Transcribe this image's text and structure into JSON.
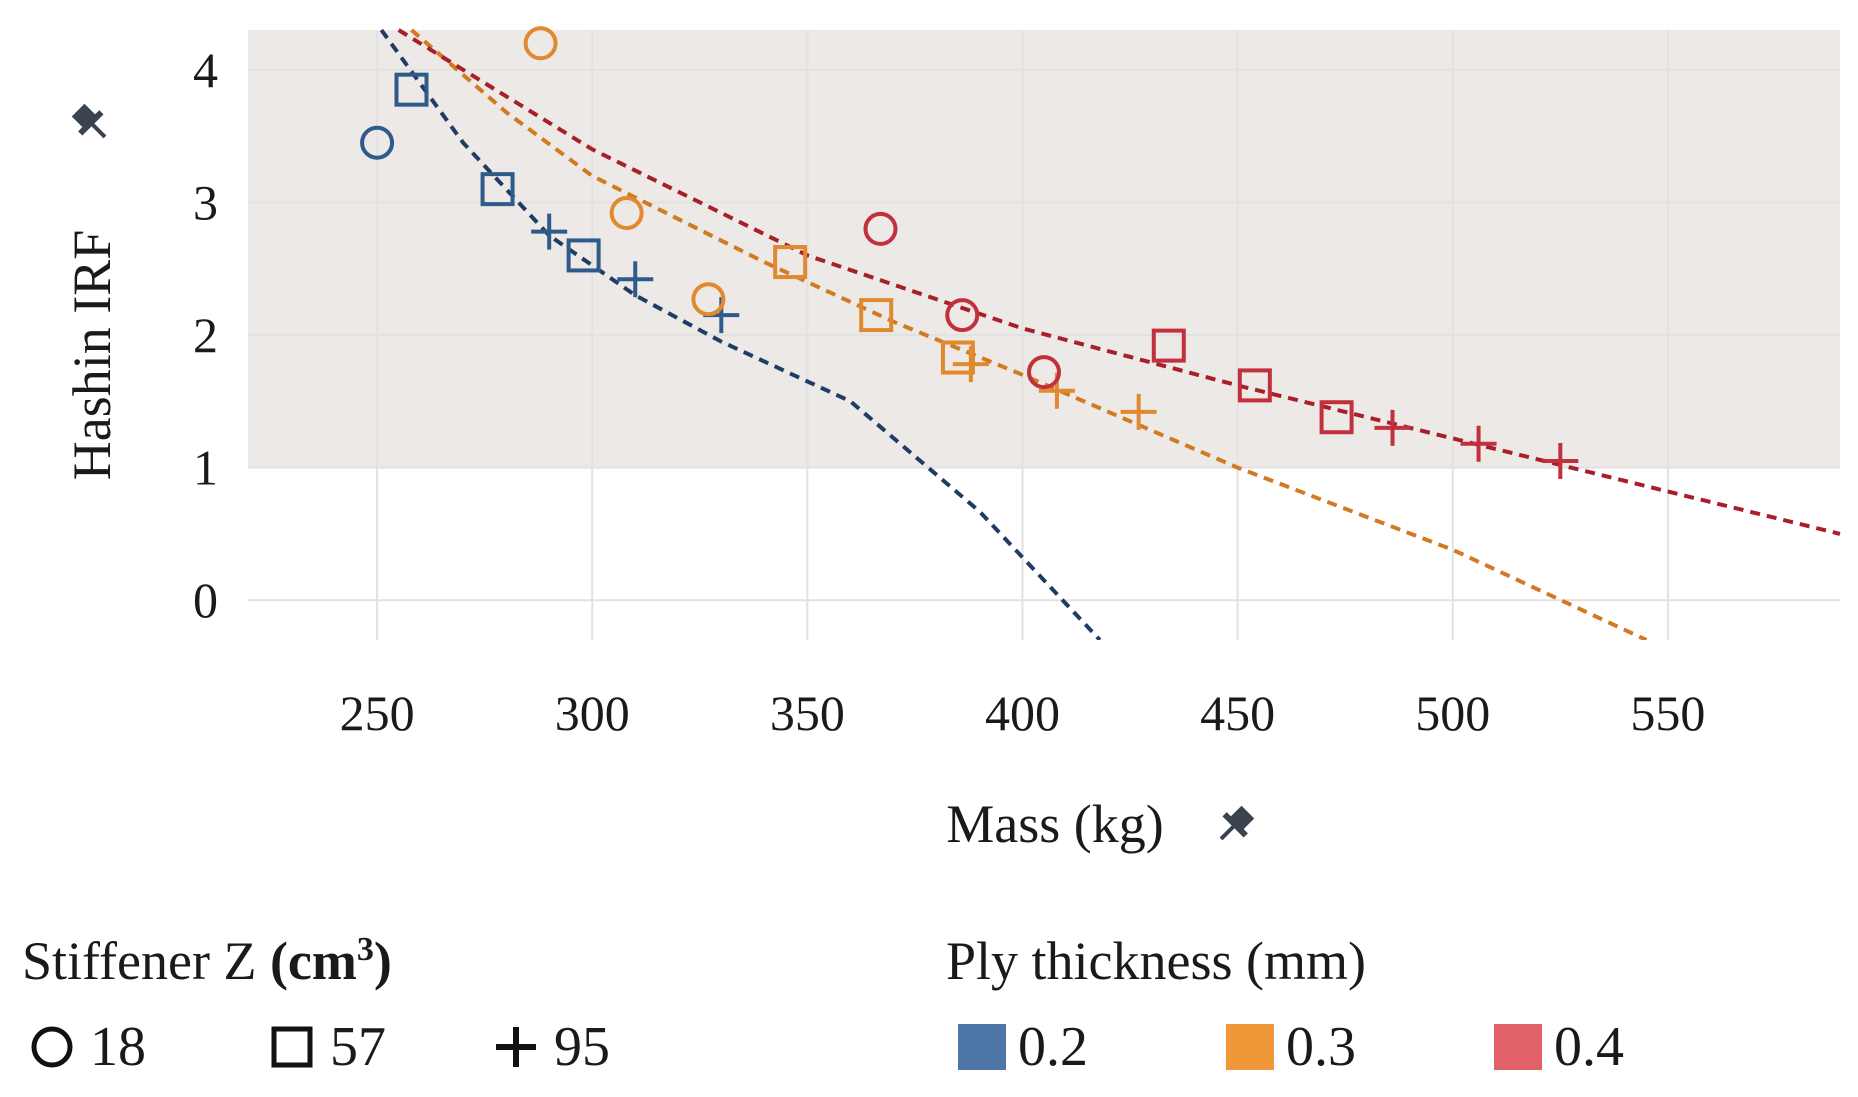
{
  "chart_data": {
    "type": "scatter",
    "xlabel": "Mass (kg)",
    "ylabel": "Hashin IRF",
    "xlim": [
      220,
      590
    ],
    "ylim": [
      -0.3,
      4.3
    ],
    "x_ticks": [
      250,
      300,
      350,
      400,
      450,
      500,
      550
    ],
    "y_ticks": [
      0,
      1,
      2,
      3,
      4
    ],
    "shaded_region": {
      "y_from": 1,
      "y_to": 4.3,
      "color": "#ece9e6"
    },
    "series": [
      {
        "name": "0.2",
        "color": "#2f5b8a",
        "points": [
          {
            "x": 250,
            "y": 3.45,
            "z": "18"
          },
          {
            "x": 258,
            "y": 3.85,
            "z": "57"
          },
          {
            "x": 278,
            "y": 3.1,
            "z": "57"
          },
          {
            "x": 298,
            "y": 2.6,
            "z": "57"
          },
          {
            "x": 290,
            "y": 2.78,
            "z": "95"
          },
          {
            "x": 310,
            "y": 2.42,
            "z": "95"
          },
          {
            "x": 330,
            "y": 2.15,
            "z": "95"
          }
        ],
        "trend": {
          "color": "#1f3c66",
          "points": [
            [
              251,
              4.3
            ],
            [
              270,
              3.45
            ],
            [
              290,
              2.75
            ],
            [
              310,
              2.3
            ],
            [
              330,
              1.95
            ],
            [
              360,
              1.5
            ],
            [
              390,
              0.67
            ],
            [
              418,
              -0.3
            ]
          ]
        }
      },
      {
        "name": "0.3",
        "color": "#e0892f",
        "points": [
          {
            "x": 288,
            "y": 4.2,
            "z": "18"
          },
          {
            "x": 308,
            "y": 2.92,
            "z": "18"
          },
          {
            "x": 327,
            "y": 2.27,
            "z": "18"
          },
          {
            "x": 346,
            "y": 2.55,
            "z": "57"
          },
          {
            "x": 366,
            "y": 2.15,
            "z": "57"
          },
          {
            "x": 385,
            "y": 1.83,
            "z": "57"
          },
          {
            "x": 388,
            "y": 1.78,
            "z": "95"
          },
          {
            "x": 408,
            "y": 1.58,
            "z": "95"
          },
          {
            "x": 427,
            "y": 1.42,
            "z": "95"
          }
        ],
        "trend": {
          "color": "#d27a22",
          "points": [
            [
              258,
              4.3
            ],
            [
              280,
              3.68
            ],
            [
              300,
              3.2
            ],
            [
              340,
              2.55
            ],
            [
              370,
              2.1
            ],
            [
              400,
              1.7
            ],
            [
              450,
              1.0
            ],
            [
              500,
              0.38
            ],
            [
              545,
              -0.3
            ]
          ]
        }
      },
      {
        "name": "0.4",
        "color": "#c2303d",
        "points": [
          {
            "x": 367,
            "y": 2.8,
            "z": "18"
          },
          {
            "x": 386,
            "y": 2.15,
            "z": "18"
          },
          {
            "x": 405,
            "y": 1.72,
            "z": "18"
          },
          {
            "x": 434,
            "y": 1.92,
            "z": "57"
          },
          {
            "x": 454,
            "y": 1.62,
            "z": "57"
          },
          {
            "x": 473,
            "y": 1.38,
            "z": "57"
          },
          {
            "x": 486,
            "y": 1.3,
            "z": "95"
          },
          {
            "x": 506,
            "y": 1.18,
            "z": "95"
          },
          {
            "x": 525,
            "y": 1.05,
            "z": "95"
          }
        ],
        "trend": {
          "color": "#a81f2a",
          "points": [
            [
              255,
              4.3
            ],
            [
              300,
              3.4
            ],
            [
              350,
              2.6
            ],
            [
              400,
              2.05
            ],
            [
              450,
              1.62
            ],
            [
              500,
              1.22
            ],
            [
              550,
              0.82
            ],
            [
              590,
              0.5
            ]
          ]
        }
      }
    ],
    "legend_shape": {
      "title_prefix": "Stiffener Z",
      "title_unit": "(cm",
      "title_exp": "3",
      "title_close": ")",
      "items": [
        {
          "label": "18",
          "shape": "circle"
        },
        {
          "label": "57",
          "shape": "square"
        },
        {
          "label": "95",
          "shape": "plus"
        }
      ]
    },
    "legend_color": {
      "title": "Ply thickness (mm)",
      "items": [
        {
          "label": "0.2",
          "color": "#4f76a8"
        },
        {
          "label": "0.3",
          "color": "#f0973a"
        },
        {
          "label": "0.4",
          "color": "#e06167"
        }
      ]
    },
    "pin_icon_note": "pin-icon"
  }
}
